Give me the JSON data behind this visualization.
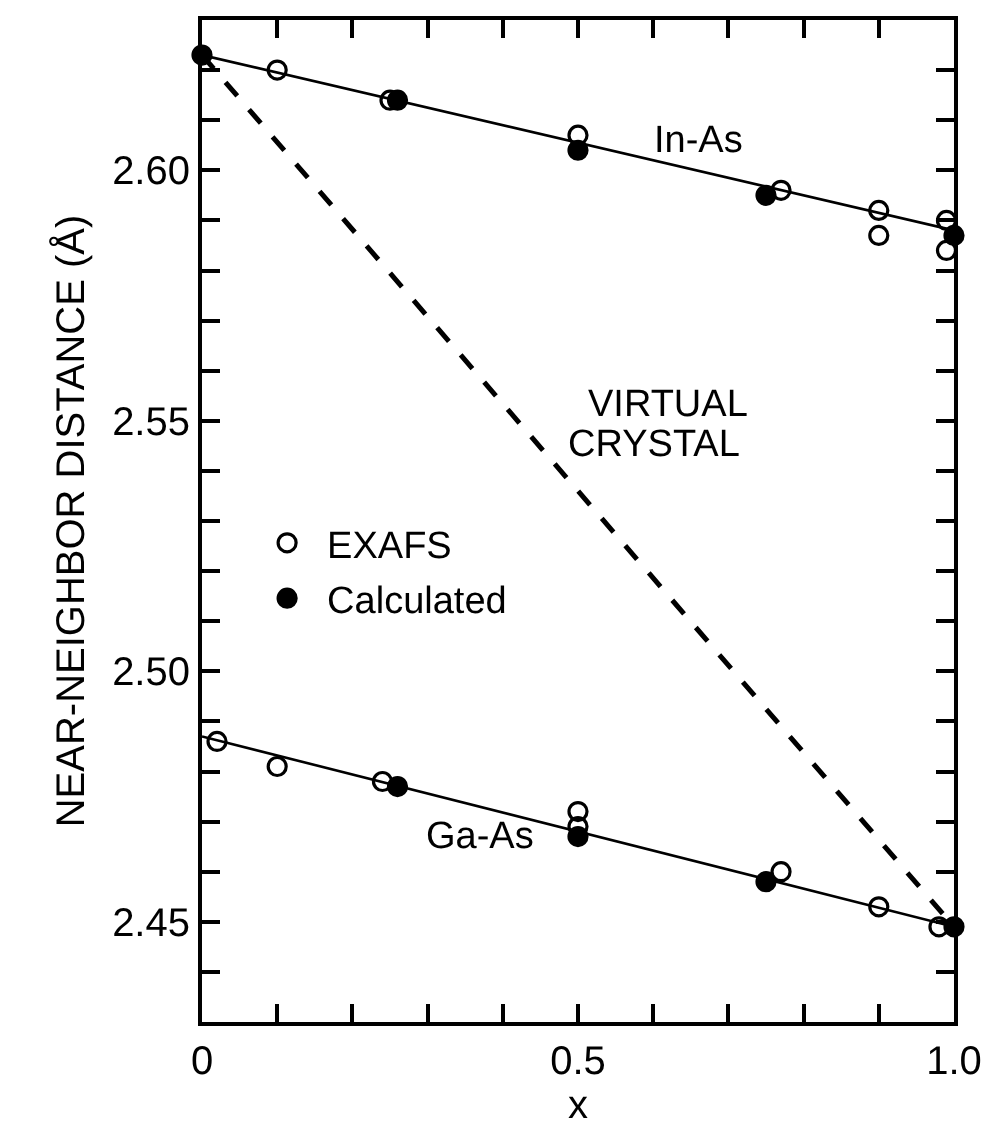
{
  "chart_data": {
    "type": "scatter",
    "xlabel": "x",
    "ylabel": "NEAR-NEIGHBOR DISTANCE (Å)",
    "xlim": [
      0,
      1
    ],
    "xticks": [
      0,
      {
        "value": 0.1,
        "label": null
      },
      {
        "value": 0.2,
        "label": null
      },
      {
        "value": 0.3,
        "label": null
      },
      {
        "value": 0.4,
        "label": null
      },
      {
        "value": 0.5,
        "label": "0.5"
      },
      {
        "value": 0.6,
        "label": null
      },
      {
        "value": 0.7,
        "label": null
      },
      {
        "value": 0.8,
        "label": null
      },
      {
        "value": 0.9,
        "label": null
      },
      {
        "value": 1,
        "label": "1.0"
      }
    ],
    "ylim": [
      2.43,
      2.63
    ],
    "yticks": [
      {
        "value": 2.44,
        "label": null
      },
      {
        "value": 2.45,
        "label": "2.45"
      },
      {
        "value": 2.46,
        "label": null
      },
      {
        "value": 2.47,
        "label": null
      },
      {
        "value": 2.48,
        "label": null
      },
      {
        "value": 2.49,
        "label": null
      },
      {
        "value": 2.5,
        "label": "2.50"
      },
      {
        "value": 2.51,
        "label": null
      },
      {
        "value": 2.52,
        "label": null
      },
      {
        "value": 2.53,
        "label": null
      },
      {
        "value": 2.54,
        "label": null
      },
      {
        "value": 2.55,
        "label": "2.55"
      },
      {
        "value": 2.56,
        "label": null
      },
      {
        "value": 2.57,
        "label": null
      },
      {
        "value": 2.58,
        "label": null
      },
      {
        "value": 2.59,
        "label": null
      },
      {
        "value": 2.6,
        "label": "2.60"
      },
      {
        "value": 2.61,
        "label": null
      },
      {
        "value": 2.62,
        "label": null
      }
    ],
    "grid": false,
    "legend": "left",
    "series": [
      {
        "type": "line",
        "marker": "none",
        "line_style": "solid",
        "color": "#000000",
        "x": [
          0,
          1
        ],
        "values": [
          2.623,
          2.588
        ]
      },
      {
        "type": "line",
        "marker": "none",
        "line_style": "solid",
        "color": "#000000",
        "x": [
          0,
          1
        ],
        "values": [
          2.487,
          2.449
        ]
      },
      {
        "type": "line",
        "marker": "none",
        "line_style": "dashed",
        "color": "#000000",
        "x": [
          0,
          1
        ],
        "values": [
          2.623,
          2.449
        ]
      },
      {
        "name": "Calculated",
        "marker": "circle",
        "color": "#000000",
        "x": [
          0,
          0.26,
          0.5,
          0.75,
          1,
          0.26,
          0.5,
          0.75,
          1
        ],
        "values": [
          2.623,
          2.614,
          2.604,
          2.595,
          2.587,
          2.477,
          2.467,
          2.458,
          2.449
        ]
      },
      {
        "name": "EXAFS",
        "marker": "circle-open",
        "color": "#000000",
        "x": [
          0.1,
          0.25,
          0.5,
          0.77,
          0.9,
          0.9,
          0.99,
          0.99,
          0.02,
          0.1,
          0.24,
          0.5,
          0.5,
          0.77,
          0.9,
          0.98
        ],
        "values": [
          2.62,
          2.614,
          2.607,
          2.596,
          2.592,
          2.587,
          2.59,
          2.584,
          2.486,
          2.481,
          2.478,
          2.472,
          2.469,
          2.46,
          2.453,
          2.449
        ]
      }
    ],
    "annotations": [
      "In-As",
      "VIRTUAL",
      "CRYSTAL",
      "Ga-As"
    ]
  }
}
